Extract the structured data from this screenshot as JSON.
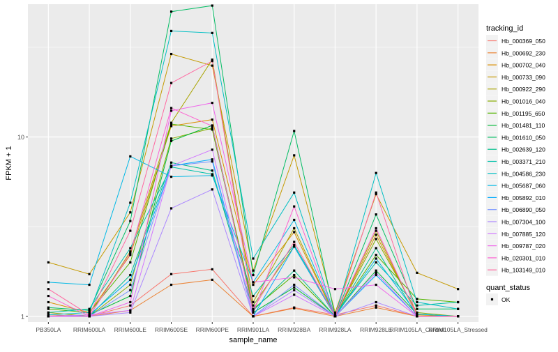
{
  "chart_data": {
    "type": "line",
    "xlabel": "sample_name",
    "ylabel": "FPKM + 1",
    "y_scale": "log10",
    "ylim": [
      0.93,
      55
    ],
    "y_ticks": [
      {
        "value": 1,
        "label": "1"
      },
      {
        "value": 10,
        "label": "10"
      }
    ],
    "categories": [
      "PB350LA",
      "RRIM600LA",
      "RRIM600LE",
      "RRIM600SE",
      "RRIM600PE",
      "RRIM901LA",
      "RRIM928BA",
      "RRIM928LA",
      "RRIM928LE",
      "RRIM105LA_Control",
      "RRIM105LA_Stressed"
    ],
    "grid": true,
    "legend": {
      "position": "right",
      "color_title": "tracking_id",
      "shape_title": "quant_status",
      "shape_entries": [
        "OK"
      ]
    },
    "series": [
      {
        "name": "Hb_000369_050",
        "color": "#F8766D",
        "values": [
          1.02,
          1.0,
          1.15,
          1.72,
          1.83,
          1.0,
          1.12,
          1.02,
          1.15,
          1.0,
          1.0
        ]
      },
      {
        "name": "Hb_000692_230",
        "color": "#EB8335",
        "values": [
          1.0,
          1.0,
          1.08,
          1.5,
          1.6,
          1.0,
          1.11,
          1.0,
          1.12,
          1.0,
          1.0
        ]
      },
      {
        "name": "Hb_000702_040",
        "color": "#DA8F00",
        "values": [
          1.2,
          1.05,
          2.2,
          11.5,
          12.5,
          1.5,
          2.95,
          1.0,
          2.85,
          1.02,
          1.0
        ]
      },
      {
        "name": "Hb_000733_090",
        "color": "#C49A00",
        "values": [
          2.0,
          1.72,
          3.8,
          29.0,
          25.0,
          1.8,
          7.9,
          1.05,
          4.8,
          1.75,
          1.42
        ]
      },
      {
        "name": "Hb_000922_290",
        "color": "#A9A400",
        "values": [
          1.05,
          1.0,
          2.3,
          12.0,
          27.0,
          1.2,
          3.1,
          1.0,
          3.0,
          1.0,
          1.0
        ]
      },
      {
        "name": "Hb_001016_040",
        "color": "#86AC00",
        "values": [
          1.0,
          1.0,
          1.5,
          9.8,
          11.2,
          1.15,
          2.45,
          1.0,
          2.7,
          1.05,
          1.0
        ]
      },
      {
        "name": "Hb_001195_650",
        "color": "#53B400",
        "values": [
          1.1,
          1.05,
          2.0,
          11.8,
          11.0,
          1.1,
          1.7,
          1.0,
          2.2,
          1.25,
          1.2
        ]
      },
      {
        "name": "Hb_001481_110",
        "color": "#00BA38",
        "values": [
          1.0,
          1.02,
          1.3,
          9.5,
          11.6,
          1.05,
          1.45,
          1.0,
          1.8,
          1.03,
          1.0
        ]
      },
      {
        "name": "Hb_001610_050",
        "color": "#00BD63",
        "values": [
          1.12,
          1.08,
          3.4,
          50.0,
          54.0,
          1.7,
          10.8,
          1.0,
          3.7,
          1.1,
          1.1
        ]
      },
      {
        "name": "Hb_002639_120",
        "color": "#00C08B",
        "values": [
          1.0,
          1.0,
          1.7,
          7.2,
          6.5,
          1.08,
          1.8,
          1.0,
          2.4,
          1.0,
          1.0
        ]
      },
      {
        "name": "Hb_003371_210",
        "color": "#00C1AA",
        "values": [
          1.05,
          1.1,
          2.4,
          6.8,
          6.2,
          1.3,
          2.5,
          1.02,
          2.0,
          1.15,
          1.2
        ]
      },
      {
        "name": "Hb_004586_230",
        "color": "#00BFC4",
        "values": [
          1.02,
          1.05,
          4.3,
          39.0,
          38.0,
          2.1,
          4.9,
          1.0,
          6.3,
          1.2,
          1.1
        ]
      },
      {
        "name": "Hb_005687_060",
        "color": "#00B8E5",
        "values": [
          1.55,
          1.5,
          7.8,
          6.0,
          6.1,
          1.55,
          3.45,
          1.0,
          2.1,
          1.03,
          1.0
        ]
      },
      {
        "name": "Hb_005892_010",
        "color": "#00ABFD",
        "values": [
          1.0,
          1.02,
          1.6,
          6.9,
          7.5,
          1.0,
          2.45,
          1.0,
          1.7,
          1.0,
          1.0
        ]
      },
      {
        "name": "Hb_006890_050",
        "color": "#7997FF",
        "values": [
          1.0,
          1.0,
          1.4,
          6.9,
          7.3,
          1.0,
          1.5,
          1.0,
          1.75,
          1.0,
          1.0
        ]
      },
      {
        "name": "Hb_007304_100",
        "color": "#AC88FF",
        "values": [
          1.0,
          1.0,
          1.05,
          4.0,
          5.1,
          1.0,
          1.4,
          1.0,
          1.2,
          1.0,
          1.0
        ]
      },
      {
        "name": "Hb_007885_120",
        "color": "#D177FF",
        "values": [
          1.0,
          1.02,
          1.08,
          6.9,
          8.5,
          1.0,
          1.32,
          1.0,
          1.75,
          1.0,
          1.0
        ]
      },
      {
        "name": "Hb_009787_020",
        "color": "#EF67EB",
        "values": [
          1.0,
          1.0,
          1.2,
          14.0,
          15.5,
          1.55,
          1.65,
          1.42,
          1.5,
          1.0,
          1.0
        ]
      },
      {
        "name": "Hb_020301_010",
        "color": "#FD61D1",
        "values": [
          1.3,
          1.0,
          2.25,
          14.5,
          11.5,
          1.05,
          4.1,
          1.0,
          3.1,
          1.0,
          1.0
        ]
      },
      {
        "name": "Hb_103149_010",
        "color": "#FF68A1",
        "values": [
          1.42,
          1.02,
          3.0,
          20.0,
          26.5,
          1.1,
          2.6,
          1.0,
          4.9,
          1.0,
          1.0
        ]
      }
    ]
  }
}
